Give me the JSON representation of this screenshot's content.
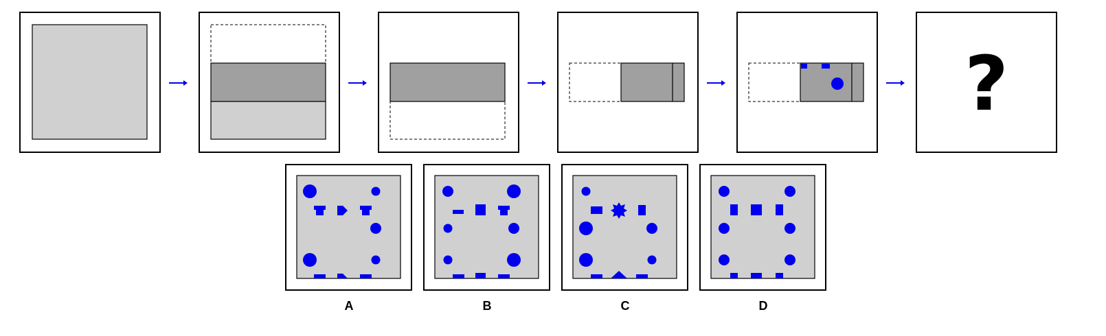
{
  "colors": {
    "frame": "#000000",
    "paper": "#ffffff",
    "light_fill": "#d0d0d0",
    "dark_fill": "#a0a0a0",
    "accent": "#0000ee"
  },
  "sequence": {
    "steps": [
      {
        "name": "step-1-full-square"
      },
      {
        "name": "step-2-fold-top-down"
      },
      {
        "name": "step-3-fold-bottom-up"
      },
      {
        "name": "step-4-fold-left-right"
      },
      {
        "name": "step-5-punch-holes"
      },
      {
        "name": "step-6-unknown"
      }
    ],
    "arrow_icon": "right-arrow-icon",
    "question_mark": "?"
  },
  "options": [
    {
      "label": "A"
    },
    {
      "label": "B"
    },
    {
      "label": "C"
    },
    {
      "label": "D"
    }
  ]
}
